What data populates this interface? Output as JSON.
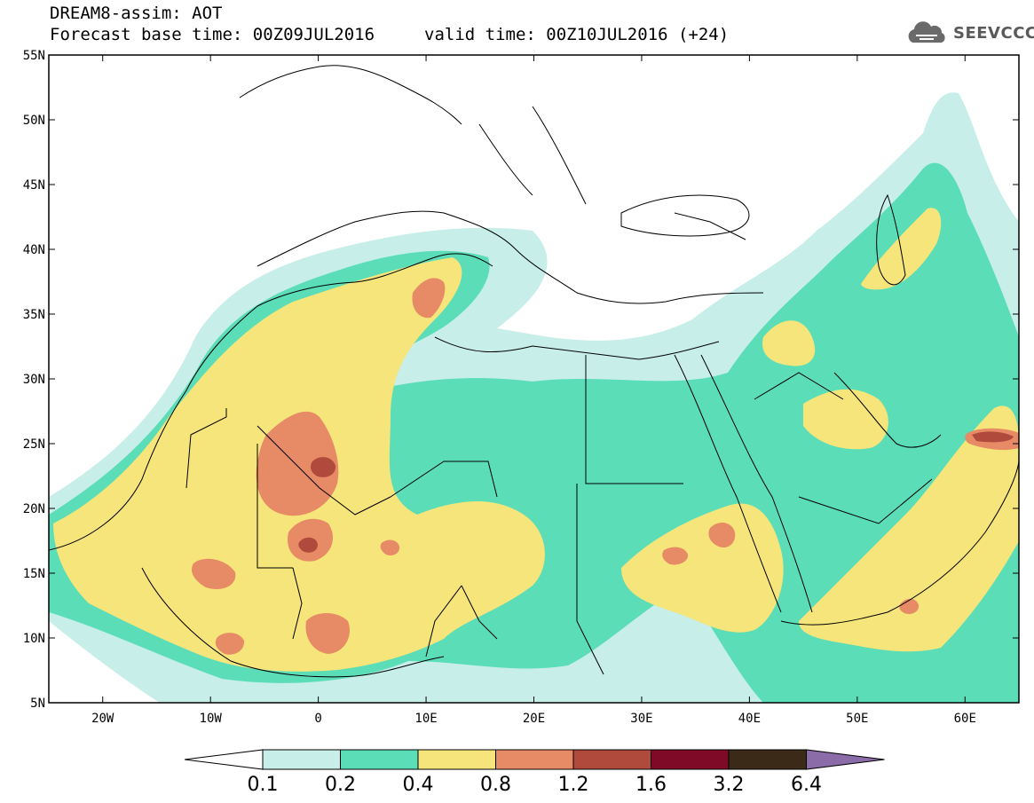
{
  "header": {
    "model_line": "DREAM8-assim: AOT",
    "base_time": "Forecast base time: 00Z09JUL2016",
    "valid_time": "valid time: 00Z10JUL2016 (+24)"
  },
  "logo": {
    "text": "SEEVCCC",
    "icon": "cloud-icon"
  },
  "map": {
    "lat_labels": [
      "55N",
      "50N",
      "45N",
      "40N",
      "35N",
      "30N",
      "25N",
      "20N",
      "15N",
      "10N",
      "5N"
    ],
    "lon_labels": [
      "20W",
      "10W",
      "0",
      "10E",
      "20E",
      "30E",
      "40E",
      "50E",
      "60E"
    ],
    "lon_range": [
      "25W",
      "65E"
    ],
    "lat_range": [
      "5N",
      "55N"
    ]
  },
  "colorbar": {
    "ticks": [
      "0.1",
      "0.2",
      "0.4",
      "0.8",
      "1.2",
      "1.6",
      "3.2",
      "6.4"
    ],
    "colors": {
      "c1": "#c7eee9",
      "c2": "#5bddb7",
      "c3": "#f5e57a",
      "c4": "#e78a66",
      "c5": "#b04a3d",
      "c6": "#7e0a28",
      "c7": "#3b2a17",
      "c8": "#8c6ca8"
    }
  }
}
